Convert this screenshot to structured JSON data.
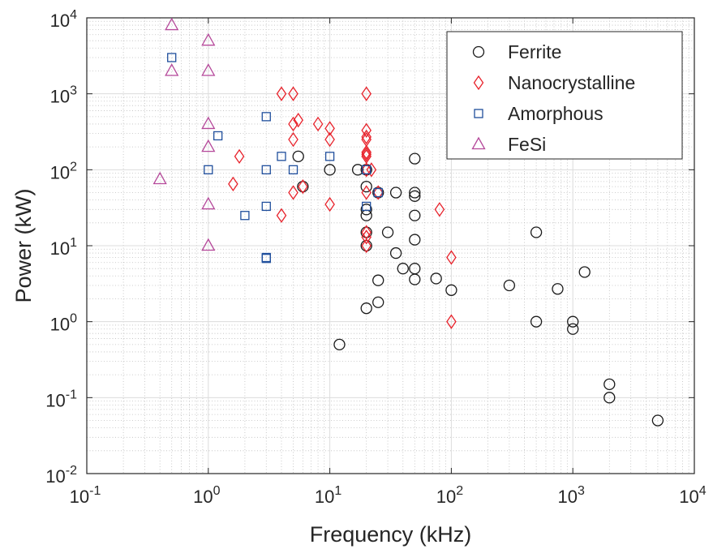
{
  "chart_data": {
    "type": "scatter",
    "title": "",
    "xlabel": "Frequency (kHz)",
    "ylabel": "Power (kW)",
    "xscale": "log",
    "yscale": "log",
    "xlim": [
      0.1,
      10000
    ],
    "ylim": [
      0.01,
      10000
    ],
    "x_ticks": [
      {
        "value": 0.1,
        "base": "10",
        "exp": "-1"
      },
      {
        "value": 1,
        "base": "10",
        "exp": "0"
      },
      {
        "value": 10,
        "base": "10",
        "exp": "1"
      },
      {
        "value": 100,
        "base": "10",
        "exp": "2"
      },
      {
        "value": 1000,
        "base": "10",
        "exp": "3"
      },
      {
        "value": 10000,
        "base": "10",
        "exp": "4"
      }
    ],
    "y_ticks": [
      {
        "value": 0.01,
        "base": "10",
        "exp": "-2"
      },
      {
        "value": 0.1,
        "base": "10",
        "exp": "-1"
      },
      {
        "value": 1,
        "base": "10",
        "exp": "0"
      },
      {
        "value": 10,
        "base": "10",
        "exp": "1"
      },
      {
        "value": 100,
        "base": "10",
        "exp": "2"
      },
      {
        "value": 1000,
        "base": "10",
        "exp": "3"
      },
      {
        "value": 10000,
        "base": "10",
        "exp": "4"
      }
    ],
    "grid": true,
    "minor_grid": true,
    "legend_position": "top-right",
    "series": [
      {
        "name": "Ferrite",
        "marker": "circle",
        "color": "#1a1a1a",
        "points": [
          [
            5.5,
            150
          ],
          [
            10,
            100
          ],
          [
            6,
            60
          ],
          [
            17,
            100
          ],
          [
            20,
            100
          ],
          [
            20,
            60
          ],
          [
            20,
            30
          ],
          [
            20,
            25
          ],
          [
            20,
            15
          ],
          [
            20,
            10
          ],
          [
            25,
            50
          ],
          [
            35,
            50
          ],
          [
            50,
            140
          ],
          [
            50,
            50
          ],
          [
            50,
            45
          ],
          [
            50,
            25
          ],
          [
            50,
            12
          ],
          [
            30,
            15
          ],
          [
            35,
            8
          ],
          [
            40,
            5
          ],
          [
            50,
            5
          ],
          [
            50,
            3.6
          ],
          [
            25,
            3.5
          ],
          [
            75,
            3.7
          ],
          [
            100,
            2.6
          ],
          [
            20,
            1.5
          ],
          [
            25,
            1.8
          ],
          [
            12,
            0.5
          ],
          [
            300,
            3
          ],
          [
            500,
            15
          ],
          [
            500,
            1
          ],
          [
            750,
            2.7
          ],
          [
            1000,
            1
          ],
          [
            1000,
            0.8
          ],
          [
            1250,
            4.5
          ],
          [
            2000,
            0.15
          ],
          [
            2000,
            0.1
          ],
          [
            5000,
            0.05
          ]
        ]
      },
      {
        "name": "Nanocrystalline",
        "marker": "diamond",
        "color": "#e8212a",
        "points": [
          [
            4,
            1000
          ],
          [
            5,
            1000
          ],
          [
            20,
            1000
          ],
          [
            5,
            400
          ],
          [
            5.5,
            450
          ],
          [
            5,
            250
          ],
          [
            8,
            400
          ],
          [
            10,
            350
          ],
          [
            10,
            250
          ],
          [
            20,
            330
          ],
          [
            20,
            270
          ],
          [
            20,
            250
          ],
          [
            20,
            170
          ],
          [
            20,
            160
          ],
          [
            20,
            150
          ],
          [
            20,
            100
          ],
          [
            22,
            100
          ],
          [
            20,
            50
          ],
          [
            1.8,
            150
          ],
          [
            1.6,
            65
          ],
          [
            6,
            60
          ],
          [
            5,
            50
          ],
          [
            4,
            25
          ],
          [
            10,
            35
          ],
          [
            25,
            50
          ],
          [
            80,
            30
          ],
          [
            20,
            15
          ],
          [
            20,
            13
          ],
          [
            20,
            10
          ],
          [
            100,
            7
          ],
          [
            100,
            1
          ]
        ]
      },
      {
        "name": "Amorphous",
        "marker": "square",
        "color": "#1f4e9c",
        "points": [
          [
            0.5,
            3000
          ],
          [
            1.2,
            280
          ],
          [
            3,
            500
          ],
          [
            1,
            100
          ],
          [
            3,
            100
          ],
          [
            4,
            150
          ],
          [
            5,
            100
          ],
          [
            10,
            150
          ],
          [
            20,
            100
          ],
          [
            20,
            33
          ],
          [
            2,
            25
          ],
          [
            3,
            33
          ],
          [
            3,
            7
          ],
          [
            3,
            6.8
          ],
          [
            25,
            50
          ]
        ]
      },
      {
        "name": "FeSi",
        "marker": "triangle",
        "color": "#b5489a",
        "points": [
          [
            0.5,
            8000
          ],
          [
            1,
            5000
          ],
          [
            0.5,
            2000
          ],
          [
            1,
            2000
          ],
          [
            1,
            400
          ],
          [
            1,
            200
          ],
          [
            0.4,
            75
          ],
          [
            1,
            35
          ],
          [
            1,
            10
          ]
        ]
      }
    ]
  }
}
